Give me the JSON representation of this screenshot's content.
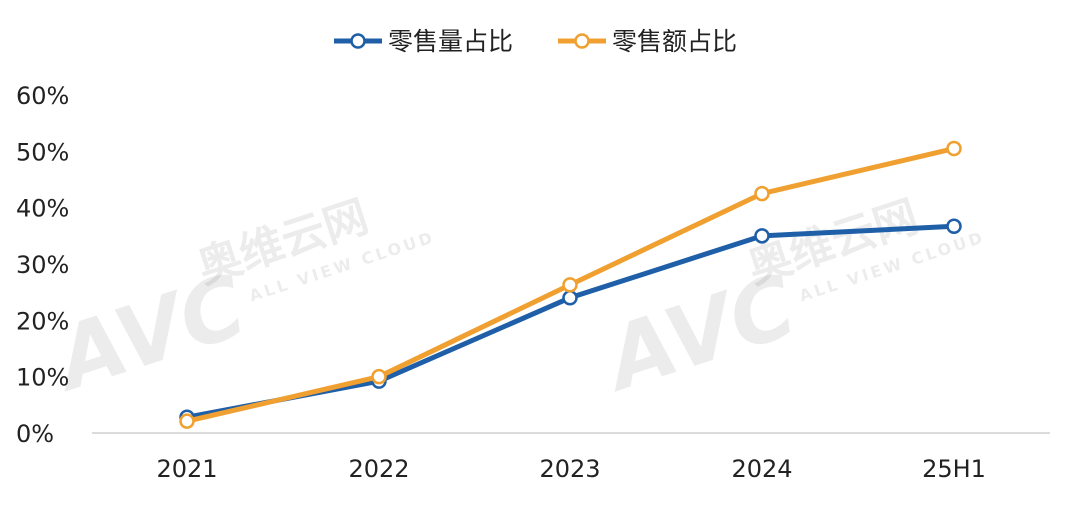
{
  "chart_data": {
    "type": "line",
    "categories": [
      "2021",
      "2022",
      "2023",
      "2024",
      "25H1"
    ],
    "series": [
      {
        "name": "零售量占比",
        "color": "#1f5fa8",
        "values": [
          2.8,
          9.2,
          24.0,
          35.0,
          36.7
        ]
      },
      {
        "name": "零售额占比",
        "color": "#f0a030",
        "values": [
          2.1,
          10.0,
          26.3,
          42.5,
          50.5
        ]
      }
    ],
    "y_ticks": [
      "0%",
      "10%",
      "20%",
      "30%",
      "40%",
      "50%",
      "60%"
    ],
    "ylim": [
      0,
      60
    ],
    "legend_position": "top-center",
    "grid": false
  },
  "watermark": {
    "logo": "AVC",
    "chinese": "奥维云网",
    "english": "ALL VIEW CLOUD"
  }
}
